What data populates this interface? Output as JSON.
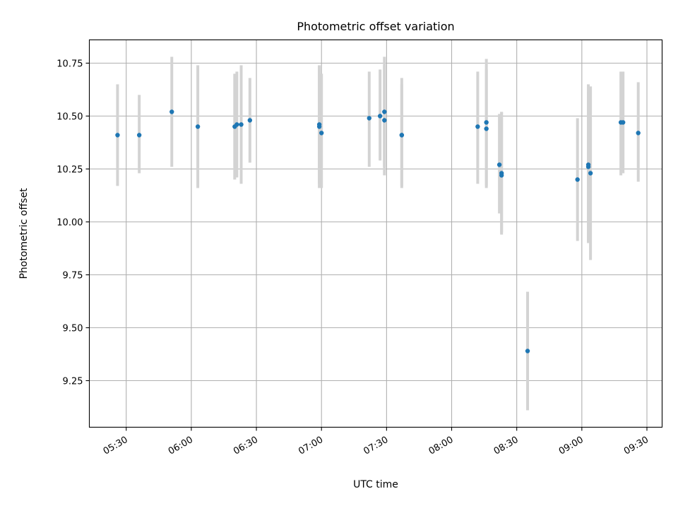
{
  "chart_data": {
    "type": "scatter",
    "title": "Photometric offset variation",
    "xlabel": "UTC time",
    "ylabel": "Photometric offset",
    "x_range": [
      "05:13",
      "09:37"
    ],
    "ylim": [
      9.03,
      10.86
    ],
    "grid": true,
    "x_ticks": [
      "05:30",
      "06:00",
      "06:30",
      "07:00",
      "07:30",
      "08:00",
      "08:30",
      "09:00",
      "09:30"
    ],
    "y_ticks": [
      "9.25",
      "9.50",
      "9.75",
      "10.00",
      "10.25",
      "10.50",
      "10.75"
    ],
    "colors": {
      "point": "#1f77b4",
      "errorbar": "#d3d3d3"
    },
    "series": [
      {
        "points": [
          {
            "t": "05:26",
            "y": 10.41,
            "lo": 10.17,
            "hi": 10.65
          },
          {
            "t": "05:36",
            "y": 10.41,
            "lo": 10.23,
            "hi": 10.6
          },
          {
            "t": "05:51",
            "y": 10.52,
            "lo": 10.26,
            "hi": 10.78
          },
          {
            "t": "06:03",
            "y": 10.45,
            "lo": 10.16,
            "hi": 10.74
          },
          {
            "t": "06:20",
            "y": 10.45,
            "lo": 10.2,
            "hi": 10.7
          },
          {
            "t": "06:21",
            "y": 10.46,
            "lo": 10.21,
            "hi": 10.71
          },
          {
            "t": "06:23",
            "y": 10.46,
            "lo": 10.18,
            "hi": 10.74
          },
          {
            "t": "06:27",
            "y": 10.48,
            "lo": 10.28,
            "hi": 10.68
          },
          {
            "t": "06:59",
            "y": 10.46,
            "lo": 10.18,
            "hi": 10.74
          },
          {
            "t": "06:59",
            "y": 10.45,
            "lo": 10.16,
            "hi": 10.74
          },
          {
            "t": "07:00",
            "y": 10.42,
            "lo": 10.16,
            "hi": 10.7
          },
          {
            "t": "07:22",
            "y": 10.49,
            "lo": 10.26,
            "hi": 10.71
          },
          {
            "t": "07:27",
            "y": 10.5,
            "lo": 10.29,
            "hi": 10.72
          },
          {
            "t": "07:29",
            "y": 10.52,
            "lo": 10.26,
            "hi": 10.78
          },
          {
            "t": "07:29",
            "y": 10.48,
            "lo": 10.22,
            "hi": 10.74
          },
          {
            "t": "07:37",
            "y": 10.41,
            "lo": 10.17,
            "hi": 10.68
          },
          {
            "t": "07:37",
            "y": 10.41,
            "lo": 10.16,
            "hi": 10.65
          },
          {
            "t": "08:12",
            "y": 10.45,
            "lo": 10.18,
            "hi": 10.71
          },
          {
            "t": "08:16",
            "y": 10.47,
            "lo": 10.17,
            "hi": 10.77
          },
          {
            "t": "08:16",
            "y": 10.44,
            "lo": 10.16,
            "hi": 10.72
          },
          {
            "t": "08:22",
            "y": 10.27,
            "lo": 10.04,
            "hi": 10.51
          },
          {
            "t": "08:23",
            "y": 10.22,
            "lo": 9.95,
            "hi": 10.52
          },
          {
            "t": "08:23",
            "y": 10.23,
            "lo": 9.94,
            "hi": 10.52
          },
          {
            "t": "08:35",
            "y": 9.39,
            "lo": 9.11,
            "hi": 9.67
          },
          {
            "t": "08:58",
            "y": 10.2,
            "lo": 9.91,
            "hi": 10.49
          },
          {
            "t": "09:03",
            "y": 10.27,
            "lo": 9.9,
            "hi": 10.65
          },
          {
            "t": "09:03",
            "y": 10.26,
            "lo": 9.91,
            "hi": 10.61
          },
          {
            "t": "09:04",
            "y": 10.23,
            "lo": 9.82,
            "hi": 10.64
          },
          {
            "t": "09:18",
            "y": 10.47,
            "lo": 10.22,
            "hi": 10.71
          },
          {
            "t": "09:19",
            "y": 10.47,
            "lo": 10.23,
            "hi": 10.71
          },
          {
            "t": "09:26",
            "y": 10.42,
            "lo": 10.19,
            "hi": 10.66
          }
        ]
      }
    ]
  }
}
